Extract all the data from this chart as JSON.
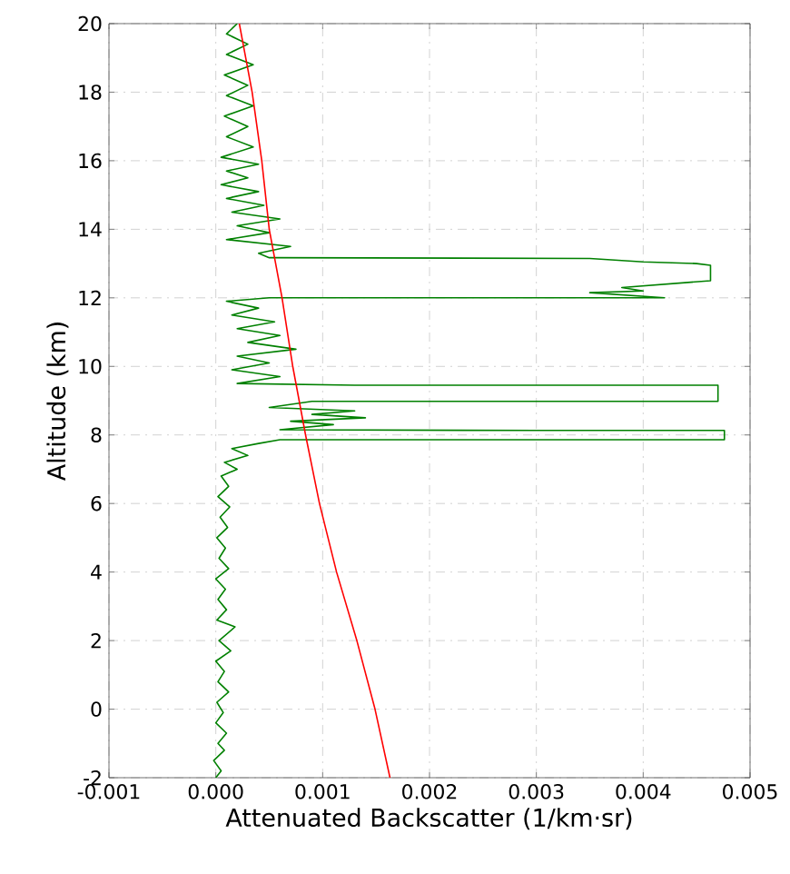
{
  "chart_data": {
    "type": "line",
    "xlabel": "Attenuated Backscatter (1/km·sr)",
    "ylabel": "Altitude (km)",
    "xlim": [
      -0.001,
      0.005
    ],
    "ylim": [
      -2,
      20
    ],
    "xticks": [
      {
        "value": -0.001,
        "label": "-0.001"
      },
      {
        "value": 0,
        "label": "0.000"
      },
      {
        "value": 0.001,
        "label": "0.001"
      },
      {
        "value": 0.002,
        "label": "0.002"
      },
      {
        "value": 0.003,
        "label": "0.003"
      },
      {
        "value": 0.004,
        "label": "0.004"
      },
      {
        "value": 0.005,
        "label": "0.005"
      }
    ],
    "yticks": [
      -2,
      0,
      2,
      4,
      6,
      8,
      10,
      12,
      14,
      16,
      18,
      20
    ],
    "grid": true,
    "marker": "none",
    "line_style": "solid",
    "series": [
      {
        "color": "#008000",
        "x": [
          0.0,
          5e-05,
          -2e-05,
          8e-05,
          2e-05,
          0.0001,
          0.0,
          7e-05,
          1e-05,
          0.00012,
          2e-05,
          8e-05,
          0.0,
          0.00014,
          3e-05,
          0.00018,
          1e-05,
          0.0001,
          2e-05,
          9e-05,
          0.0,
          0.00012,
          3e-05,
          9e-05,
          1e-05,
          0.00011,
          4e-05,
          0.00013,
          2e-05,
          0.00012,
          5e-05,
          0.0002,
          8e-05,
          0.0003,
          0.00015,
          0.0004,
          0.0006,
          0.00476,
          0.00476,
          0.003,
          0.0006,
          0.0011,
          0.0007,
          0.0014,
          0.0009,
          0.0013,
          0.0005,
          0.0009,
          0.0047,
          0.0047,
          0.0013,
          0.0002,
          0.0006,
          0.00015,
          0.0005,
          0.0002,
          0.00075,
          0.0003,
          0.0006,
          0.0002,
          0.00055,
          0.00015,
          0.0004,
          0.0001,
          0.0005,
          0.0042,
          0.0035,
          0.004,
          0.0038,
          0.00463,
          0.00463,
          0.0045,
          0.004,
          0.0035,
          0.0005,
          0.0004,
          0.0007,
          0.0001,
          0.0005,
          0.0002,
          0.0006,
          0.00015,
          0.00045,
          0.0001,
          0.0004,
          5e-05,
          0.0003,
          0.0001,
          0.0004,
          5e-05,
          0.00035,
          0.0001,
          0.0003,
          8e-05,
          0.00035,
          0.0001,
          0.0003,
          8e-05,
          0.00035,
          0.0001,
          0.0003,
          0.0001,
          0.0002
        ],
        "values": [
          -2,
          -1.8,
          -1.5,
          -1.2,
          -1.0,
          -0.7,
          -0.4,
          -0.1,
          0.2,
          0.5,
          0.8,
          1.1,
          1.4,
          1.7,
          2.0,
          2.4,
          2.6,
          2.9,
          3.2,
          3.5,
          3.8,
          4.1,
          4.4,
          4.7,
          5.0,
          5.3,
          5.6,
          5.9,
          6.2,
          6.5,
          6.8,
          7.0,
          7.2,
          7.4,
          7.6,
          7.75,
          7.86,
          7.86,
          8.13,
          8.13,
          8.15,
          8.3,
          8.4,
          8.5,
          8.6,
          8.7,
          8.8,
          8.98,
          8.98,
          9.45,
          9.45,
          9.5,
          9.7,
          9.9,
          10.1,
          10.3,
          10.5,
          10.7,
          10.9,
          11.1,
          11.3,
          11.5,
          11.7,
          11.9,
          12.0,
          12.0,
          12.15,
          12.2,
          12.3,
          12.5,
          12.95,
          13.0,
          13.05,
          13.15,
          13.17,
          13.3,
          13.5,
          13.7,
          13.9,
          14.1,
          14.3,
          14.5,
          14.7,
          14.9,
          15.1,
          15.3,
          15.5,
          15.7,
          15.9,
          16.1,
          16.4,
          16.7,
          17.0,
          17.3,
          17.6,
          17.9,
          18.2,
          18.5,
          18.8,
          19.1,
          19.4,
          19.7,
          20.0
        ]
      },
      {
        "color": "#ff0000",
        "x": [
          0.00163,
          0.00149,
          0.00132,
          0.00113,
          0.00097,
          0.00084,
          0.00072,
          0.00062,
          0.0005,
          0.00043,
          0.00034,
          0.00022
        ],
        "values": [
          -2,
          0,
          2,
          4,
          6,
          8,
          10,
          12,
          14,
          16,
          18,
          20
        ]
      }
    ]
  }
}
